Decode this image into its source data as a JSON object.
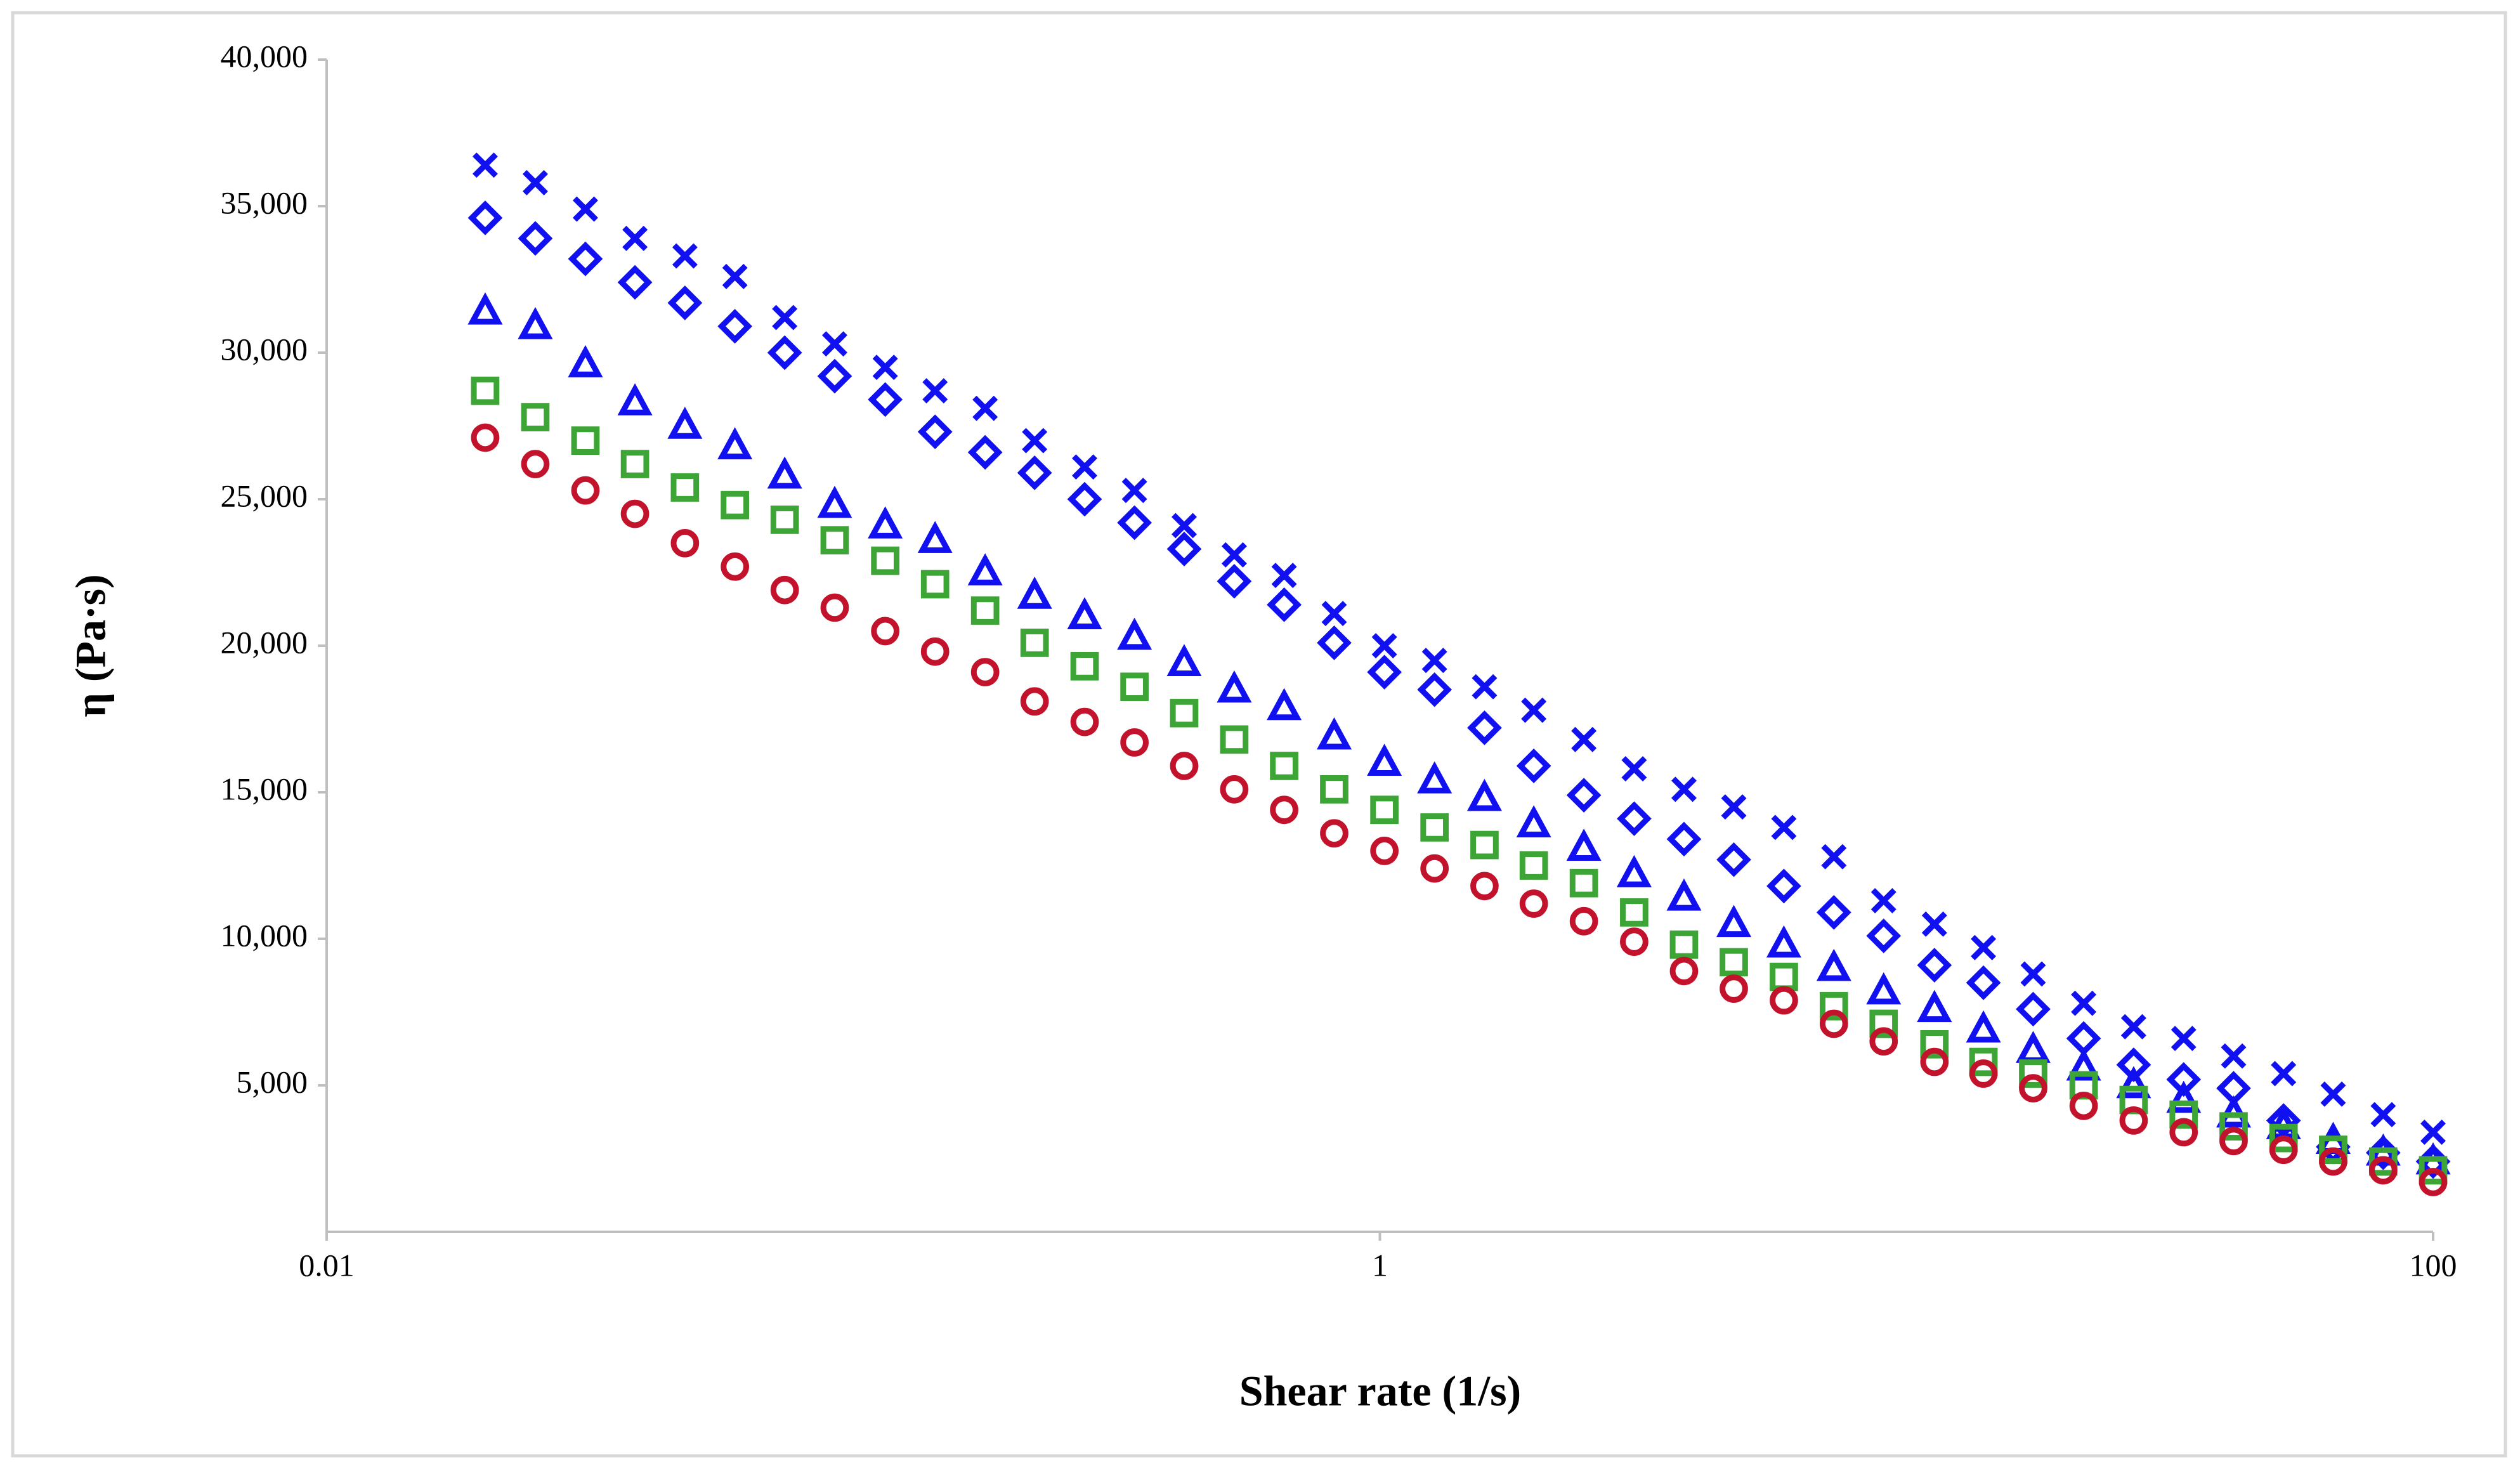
{
  "chart_data": {
    "type": "scatter",
    "x_label": "Shear rate (1/s)",
    "y_label": "η (Pa·s)",
    "log_x": true,
    "grid": false,
    "xlim": [
      0.01,
      100
    ],
    "xticks": [
      0.01,
      1,
      100
    ],
    "ylim": [
      0,
      40000
    ],
    "yticks": [
      {
        "value": 5000,
        "label": "5,000"
      },
      {
        "value": 10000,
        "label": "10,000"
      },
      {
        "value": 15000,
        "label": "15,000"
      },
      {
        "value": 20000,
        "label": "20,000"
      },
      {
        "value": 25000,
        "label": "25,000"
      },
      {
        "value": 30000,
        "label": "30,000"
      },
      {
        "value": 35000,
        "label": "35,000"
      },
      {
        "value": 40000,
        "label": "40,000"
      }
    ],
    "x": [
      0.02,
      0.0249,
      0.031,
      0.0385,
      0.0479,
      0.0596,
      0.0741,
      0.0922,
      0.115,
      0.143,
      0.178,
      0.221,
      0.275,
      0.342,
      0.425,
      0.529,
      0.658,
      0.819,
      1.02,
      1.27,
      1.58,
      1.96,
      2.44,
      3.04,
      3.78,
      4.7,
      5.85,
      7.28,
      9.05,
      11.3,
      14,
      17.4,
      21.7,
      27,
      33.6,
      41.8,
      52,
      64.6,
      80.4,
      100
    ],
    "series": [
      {
        "marker": "x",
        "color": "#1010f0",
        "values": [
          36400,
          35800,
          34900,
          33900,
          33300,
          32600,
          31200,
          30300,
          29500,
          28700,
          28100,
          27000,
          26100,
          25300,
          24100,
          23100,
          22400,
          21100,
          20000,
          19500,
          18600,
          17800,
          16800,
          15800,
          15100,
          14500,
          13800,
          12800,
          11300,
          10500,
          9700,
          8800,
          7800,
          7000,
          6600,
          6000,
          5400,
          4700,
          4000,
          3400
        ]
      },
      {
        "marker": "diamond",
        "color": "#1010f0",
        "values": [
          34600,
          33900,
          33200,
          32400,
          31700,
          30900,
          30000,
          29200,
          28400,
          27300,
          26600,
          25900,
          25000,
          24200,
          23300,
          22200,
          21400,
          20100,
          19100,
          18500,
          17200,
          15900,
          14900,
          14100,
          13400,
          12700,
          11800,
          10900,
          10100,
          9100,
          8500,
          7600,
          6600,
          5700,
          5200,
          4900,
          3800,
          2900,
          2700,
          2400
        ]
      },
      {
        "marker": "triangle",
        "color": "#1010f0",
        "values": [
          31400,
          30900,
          29600,
          28300,
          27500,
          26800,
          25800,
          24800,
          24100,
          23600,
          22500,
          21700,
          21000,
          20300,
          19400,
          18500,
          17900,
          16900,
          16000,
          15400,
          14800,
          13900,
          13100,
          12200,
          11400,
          10500,
          9800,
          9000,
          8200,
          7600,
          6900,
          6200,
          5600,
          5000,
          4500,
          4000,
          3600,
          3100,
          2700,
          2400
        ]
      },
      {
        "marker": "square",
        "color": "#3da535",
        "values": [
          28700,
          27800,
          27000,
          26200,
          25400,
          24800,
          24300,
          23600,
          22900,
          22100,
          21200,
          20100,
          19300,
          18600,
          17700,
          16800,
          15900,
          15100,
          14400,
          13800,
          13200,
          12500,
          11900,
          10900,
          9800,
          9200,
          8700,
          7700,
          7100,
          6400,
          5800,
          5400,
          5000,
          4500,
          4000,
          3600,
          3200,
          2800,
          2400,
          2100
        ]
      },
      {
        "marker": "circle",
        "color": "#c3132c",
        "values": [
          27100,
          26200,
          25300,
          24500,
          23500,
          22700,
          21900,
          21300,
          20500,
          19800,
          19100,
          18100,
          17400,
          16700,
          15900,
          15100,
          14400,
          13600,
          13000,
          12400,
          11800,
          11200,
          10600,
          9900,
          8900,
          8300,
          7900,
          7100,
          6500,
          5800,
          5400,
          4900,
          4300,
          3800,
          3400,
          3100,
          2800,
          2400,
          2100,
          1700
        ]
      }
    ]
  }
}
